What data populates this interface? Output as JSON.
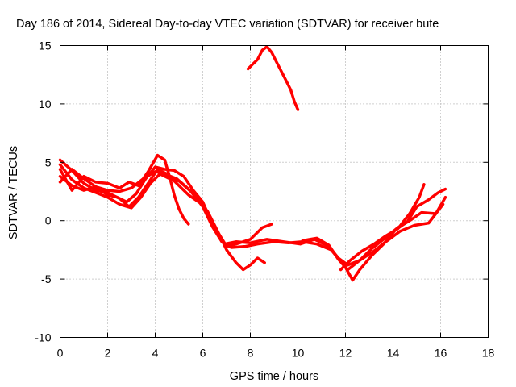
{
  "chart_data": {
    "type": "line",
    "title": "Day 186 of 2014, Sidereal Day-to-day VTEC variation (SDTVAR) for receiver bute",
    "xlabel": "GPS time / hours",
    "ylabel": "SDTVAR / TECUs",
    "xlim": [
      0,
      18
    ],
    "ylim": [
      -10,
      15
    ],
    "xticks": [
      0,
      2,
      4,
      6,
      8,
      10,
      12,
      14,
      16,
      18
    ],
    "yticks": [
      -10,
      -5,
      0,
      5,
      10,
      15
    ],
    "grid": true,
    "series": [
      {
        "name": "trace-1",
        "color": "#ff0000",
        "points": [
          [
            0,
            5.2
          ],
          [
            0.5,
            4.3
          ],
          [
            1,
            3.2
          ],
          [
            1.5,
            2.6
          ],
          [
            2,
            2.4
          ],
          [
            2.5,
            1.9
          ],
          [
            2.9,
            1.2
          ],
          [
            3.3,
            2.0
          ],
          [
            3.7,
            3.2
          ],
          [
            4.1,
            4.4
          ],
          [
            4.5,
            4.0
          ],
          [
            5.0,
            3.0
          ],
          [
            5.4,
            2.2
          ],
          [
            5.9,
            1.5
          ],
          [
            6.2,
            0.8
          ],
          [
            6.6,
            -0.8
          ],
          [
            7.0,
            -2.5
          ],
          [
            7.4,
            -3.6
          ],
          [
            7.7,
            -4.2
          ],
          [
            8.0,
            -3.8
          ],
          [
            8.3,
            -3.2
          ],
          [
            8.6,
            -3.6
          ]
        ]
      },
      {
        "name": "trace-2",
        "color": "#ff0000",
        "points": [
          [
            0,
            4.8
          ],
          [
            0.5,
            3.5
          ],
          [
            1,
            2.8
          ],
          [
            1.5,
            2.4
          ],
          [
            2,
            2.0
          ],
          [
            2.5,
            1.4
          ],
          [
            3.0,
            1.1
          ],
          [
            3.4,
            2.0
          ],
          [
            3.8,
            3.2
          ],
          [
            4.2,
            4.0
          ],
          [
            4.6,
            3.6
          ],
          [
            5.0,
            3.4
          ],
          [
            5.5,
            2.5
          ],
          [
            6.0,
            1.2
          ],
          [
            6.4,
            -0.5
          ],
          [
            6.8,
            -1.8
          ],
          [
            7.2,
            -2.3
          ],
          [
            7.8,
            -2.2
          ],
          [
            8.3,
            -2.0
          ],
          [
            9.0,
            -1.8
          ],
          [
            9.6,
            -1.9
          ],
          [
            10.2,
            -1.8
          ],
          [
            10.8,
            -2.0
          ],
          [
            11.4,
            -2.5
          ],
          [
            11.8,
            -3.5
          ],
          [
            12.1,
            -4.2
          ],
          [
            12.6,
            -3.4
          ],
          [
            13.2,
            -2.6
          ],
          [
            13.7,
            -1.8
          ],
          [
            14.3,
            -0.9
          ],
          [
            14.9,
            -0.4
          ],
          [
            15.5,
            -0.2
          ],
          [
            16.1,
            1.4
          ]
        ]
      },
      {
        "name": "trace-3",
        "color": "#ff0000",
        "points": [
          [
            0,
            3.3
          ],
          [
            0.5,
            4.4
          ],
          [
            1,
            3.6
          ],
          [
            1.5,
            2.9
          ],
          [
            2,
            2.2
          ],
          [
            2.4,
            2.0
          ],
          [
            2.8,
            1.6
          ],
          [
            3.2,
            2.3
          ],
          [
            3.6,
            3.6
          ],
          [
            4.0,
            4.6
          ],
          [
            4.4,
            4.4
          ],
          [
            4.8,
            4.3
          ],
          [
            5.2,
            3.8
          ],
          [
            5.6,
            2.6
          ],
          [
            6.0,
            1.6
          ],
          [
            6.3,
            0.2
          ],
          [
            6.7,
            -1.2
          ],
          [
            7.0,
            -2.2
          ],
          [
            7.4,
            -2.0
          ],
          [
            8.0,
            -1.6
          ],
          [
            8.5,
            -0.6
          ],
          [
            8.9,
            -0.3
          ]
        ]
      },
      {
        "name": "trace-4",
        "color": "#ff0000",
        "points": [
          [
            0,
            4.4
          ],
          [
            0.5,
            2.6
          ],
          [
            1,
            3.8
          ],
          [
            1.5,
            3.3
          ],
          [
            2,
            3.2
          ],
          [
            2.5,
            2.8
          ],
          [
            2.9,
            3.3
          ],
          [
            3.3,
            3.0
          ],
          [
            3.7,
            4.2
          ],
          [
            4.1,
            5.6
          ],
          [
            4.4,
            5.2
          ],
          [
            4.6,
            3.8
          ],
          [
            4.8,
            2.2
          ],
          [
            5.0,
            1.0
          ],
          [
            5.2,
            0.2
          ],
          [
            5.4,
            -0.3
          ]
        ]
      },
      {
        "name": "trace-5",
        "color": "#ff0000",
        "points": [
          [
            0,
            3.8
          ],
          [
            0.5,
            3.0
          ],
          [
            1,
            2.6
          ],
          [
            1.5,
            2.9
          ],
          [
            2,
            2.6
          ],
          [
            2.5,
            2.5
          ],
          [
            3.0,
            2.8
          ],
          [
            3.5,
            3.6
          ],
          [
            4.0,
            4.2
          ],
          [
            4.4,
            4.0
          ],
          [
            4.9,
            3.6
          ],
          [
            5.3,
            2.9
          ],
          [
            5.7,
            2.1
          ],
          [
            6.1,
            1.0
          ],
          [
            6.5,
            -0.8
          ],
          [
            6.9,
            -2.0
          ],
          [
            7.4,
            -1.8
          ],
          [
            8.0,
            -1.9
          ],
          [
            8.7,
            -1.6
          ],
          [
            9.4,
            -1.8
          ],
          [
            10.1,
            -2.0
          ],
          [
            10.7,
            -1.6
          ],
          [
            11.3,
            -2.2
          ],
          [
            11.7,
            -3.2
          ],
          [
            12.1,
            -3.8
          ],
          [
            12.6,
            -3.4
          ],
          [
            13.1,
            -2.4
          ],
          [
            13.6,
            -1.6
          ],
          [
            14.2,
            -0.6
          ],
          [
            14.7,
            0.0
          ],
          [
            15.2,
            0.7
          ],
          [
            15.8,
            0.6
          ],
          [
            16.2,
            2.0
          ]
        ]
      },
      {
        "name": "trace-6",
        "color": "#ff0000",
        "points": [
          [
            10.2,
            -1.7
          ],
          [
            10.8,
            -1.5
          ],
          [
            11.3,
            -2.1
          ],
          [
            11.7,
            -3.3
          ],
          [
            12.0,
            -4.0
          ],
          [
            12.3,
            -5.1
          ],
          [
            12.6,
            -4.2
          ],
          [
            13.1,
            -3.0
          ],
          [
            13.6,
            -2.0
          ],
          [
            14.1,
            -0.8
          ],
          [
            14.6,
            -0.1
          ],
          [
            15.0,
            1.2
          ],
          [
            15.5,
            1.8
          ],
          [
            15.9,
            2.4
          ],
          [
            16.2,
            2.7
          ]
        ]
      },
      {
        "name": "trace-7",
        "color": "#ff0000",
        "points": [
          [
            11.8,
            -4.2
          ],
          [
            12.2,
            -3.4
          ],
          [
            12.7,
            -2.6
          ],
          [
            13.2,
            -2.0
          ],
          [
            13.7,
            -1.3
          ],
          [
            14.2,
            -0.7
          ],
          [
            14.7,
            0.6
          ],
          [
            15.1,
            2.0
          ],
          [
            15.3,
            3.1
          ]
        ]
      },
      {
        "name": "trace-8",
        "color": "#ff0000",
        "points": [
          [
            7.9,
            13.0
          ],
          [
            8.1,
            13.4
          ],
          [
            8.3,
            13.8
          ],
          [
            8.5,
            14.6
          ],
          [
            8.7,
            14.9
          ],
          [
            8.9,
            14.4
          ],
          [
            9.1,
            13.6
          ],
          [
            9.3,
            12.8
          ],
          [
            9.5,
            12.0
          ],
          [
            9.7,
            11.2
          ],
          [
            9.85,
            10.2
          ],
          [
            10.0,
            9.5
          ]
        ]
      }
    ]
  }
}
